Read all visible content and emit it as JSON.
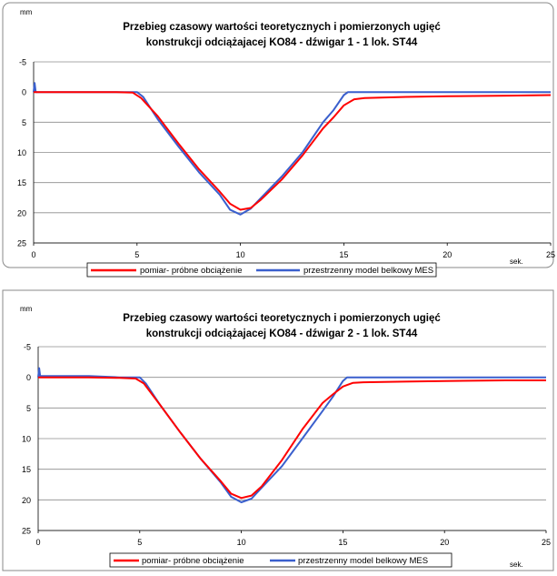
{
  "chart_data": [
    {
      "type": "line",
      "title": "Przebieg czasowy wartości teoretycznych i pomierzonych ugięć",
      "subtitle": "konstrukcji odciążajacej KO84 - dźwigar 1 - 1 lok. ST44",
      "ylabel": "mm",
      "xlabel": "sek.",
      "xlim": [
        0,
        25
      ],
      "ylim": [
        -5,
        25
      ],
      "y_inverted": true,
      "x_ticks": [
        "0",
        "5",
        "10",
        "15",
        "20",
        "25"
      ],
      "y_ticks": [
        "-5",
        "0",
        "5",
        "10",
        "15",
        "20",
        "25"
      ],
      "grid": "horizontal",
      "legend_position": "bottom",
      "series": [
        {
          "name": "pomiar- próbne obciążenie",
          "color": "#ff0000",
          "x": [
            0,
            2.5,
            4,
            4.8,
            5.2,
            6,
            7,
            8,
            9,
            9.5,
            10,
            10.5,
            11,
            12,
            13,
            14,
            14.5,
            15,
            15.5,
            16,
            18,
            20,
            23,
            25
          ],
          "y": [
            0,
            0,
            0,
            0.1,
            1,
            4,
            8.5,
            12.8,
            16.5,
            18.5,
            19.5,
            19.2,
            17.8,
            14.5,
            10.5,
            6,
            4.2,
            2.2,
            1.2,
            1,
            0.8,
            0.7,
            0.6,
            0.5
          ]
        },
        {
          "name": "przestrzenny model belkowy MES",
          "color": "#3a5fcd",
          "x": [
            0,
            0.05,
            0.1,
            2.5,
            4,
            5,
            5.3,
            6,
            7,
            8,
            9,
            9.5,
            10,
            10.5,
            11,
            12,
            13,
            14,
            14.5,
            15,
            15.2,
            16,
            20,
            25
          ],
          "y": [
            0,
            -1.5,
            0,
            0,
            0,
            0,
            0.8,
            4.5,
            9,
            13.3,
            17,
            19.5,
            20.3,
            19.3,
            17.5,
            14,
            10,
            5,
            3,
            0.5,
            0,
            0,
            0,
            0
          ]
        }
      ]
    },
    {
      "type": "line",
      "title": "Przebieg czasowy wartości teoretycznych i pomierzonych ugięć",
      "subtitle": "konstrukcji odciążajacej KO84 - dźwigar 2 - 1 lok. ST44",
      "ylabel": "mm",
      "xlabel": "sek.",
      "xlim": [
        0,
        25
      ],
      "ylim": [
        -5,
        25
      ],
      "y_inverted": true,
      "x_ticks": [
        "0",
        "5",
        "10",
        "15",
        "20",
        "25"
      ],
      "y_ticks": [
        "-5",
        "0",
        "5",
        "10",
        "15",
        "20",
        "25"
      ],
      "grid": "horizontal",
      "legend_position": "bottom",
      "series": [
        {
          "name": "pomiar- próbne obciążenie",
          "color": "#ff0000",
          "x": [
            0,
            2.5,
            4,
            4.8,
            5.2,
            6,
            7,
            8,
            9,
            9.5,
            10,
            10.5,
            11,
            12,
            13,
            14,
            14.5,
            15,
            15.5,
            16,
            18,
            20,
            23,
            25
          ],
          "y": [
            0,
            0,
            0.1,
            0.2,
            1,
            4.5,
            9,
            13.3,
            17,
            19,
            19.7,
            19.3,
            17.8,
            13.5,
            8.5,
            4.2,
            2.8,
            1.5,
            0.9,
            0.8,
            0.7,
            0.6,
            0.5,
            0.5
          ]
        },
        {
          "name": "przestrzenny model belkowy MES",
          "color": "#3a5fcd",
          "x": [
            0,
            0.05,
            0.1,
            2.5,
            4,
            5,
            5.3,
            6,
            7,
            8,
            9,
            9.5,
            10,
            10.5,
            11,
            12,
            13,
            14,
            14.5,
            15,
            15.2,
            16,
            20,
            25
          ],
          "y": [
            0,
            -1.5,
            -0.2,
            -0.2,
            0,
            0,
            1,
            4.5,
            9,
            13.3,
            17.2,
            19.5,
            20.4,
            19.8,
            18,
            14.5,
            10,
            5.5,
            3.2,
            0.6,
            0,
            0,
            0,
            0
          ]
        }
      ]
    }
  ]
}
